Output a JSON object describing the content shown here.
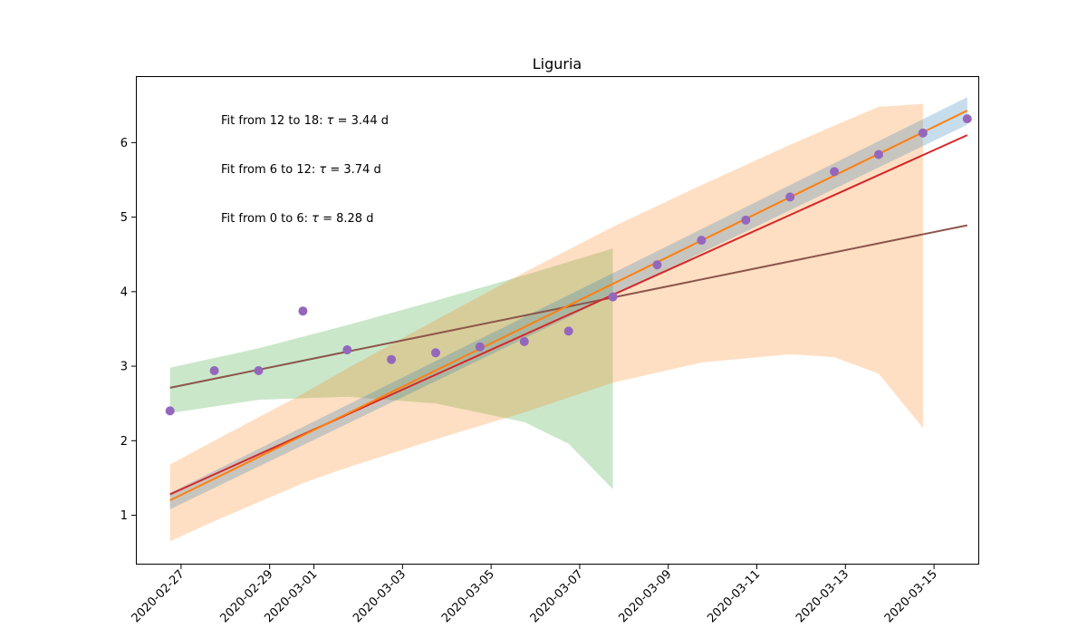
{
  "chart_data": {
    "type": "scatter",
    "title": "Liguria",
    "xlabel": "",
    "ylabel": "",
    "x_range": [
      "2020-02-26",
      "2020-03-16"
    ],
    "ylim": [
      0.35,
      6.88
    ],
    "x_ticks": [
      "2020-02-27",
      "2020-02-29",
      "2020-03-01",
      "2020-03-03",
      "2020-03-05",
      "2020-03-07",
      "2020-03-09",
      "2020-03-11",
      "2020-03-13",
      "2020-03-15"
    ],
    "y_ticks": [
      1,
      2,
      3,
      4,
      5,
      6
    ],
    "grid": false,
    "annotations": [
      {
        "prefix": "Fit from 12 to 18: ",
        "tau": "τ",
        "suffix": " = 3.44 d"
      },
      {
        "prefix": "Fit from 6 to 12: ",
        "tau": "τ",
        "suffix": " = 3.74 d"
      },
      {
        "prefix": "Fit from 0 to 6: ",
        "tau": "τ",
        "suffix": " = 8.28 d"
      }
    ],
    "points": {
      "color": "#9467bd",
      "x": [
        "2020-02-26T18:00",
        "2020-02-27T18:00",
        "2020-02-28T18:00",
        "2020-02-29T18:00",
        "2020-03-01T18:00",
        "2020-03-02T18:00",
        "2020-03-03T18:00",
        "2020-03-04T18:00",
        "2020-03-05T18:00",
        "2020-03-06T18:00",
        "2020-03-07T18:00",
        "2020-03-08T18:00",
        "2020-03-09T18:00",
        "2020-03-10T18:00",
        "2020-03-11T18:00",
        "2020-03-12T18:00",
        "2020-03-13T18:00",
        "2020-03-14T18:00",
        "2020-03-15T18:00"
      ],
      "y": [
        2.4,
        2.94,
        2.94,
        3.74,
        3.22,
        3.09,
        3.18,
        3.26,
        3.33,
        3.47,
        3.93,
        4.36,
        4.69,
        4.96,
        5.27,
        5.61,
        5.84,
        6.13,
        6.32
      ]
    },
    "bands": [
      {
        "color": "#2ca02c",
        "opacity": 0.25,
        "x": [
          "2020-02-26T18:00",
          "2020-02-28T18:00",
          "2020-03-01T18:00",
          "2020-03-03T18:00",
          "2020-03-05T18:00",
          "2020-03-06T18:00",
          "2020-03-07T18:00"
        ],
        "upper": [
          2.98,
          3.24,
          3.55,
          3.88,
          4.22,
          4.4,
          4.58
        ],
        "lower": [
          2.37,
          2.55,
          2.59,
          2.5,
          2.25,
          1.96,
          1.35
        ]
      },
      {
        "color": "#ff7f0e",
        "opacity": 0.25,
        "x": [
          "2020-02-26T18:00",
          "2020-02-27T18:00",
          "2020-02-29T18:00",
          "2020-03-01T18:00",
          "2020-03-03T18:00",
          "2020-03-05T18:00",
          "2020-03-07T18:00",
          "2020-03-09T18:00",
          "2020-03-11T18:00",
          "2020-03-12T18:00",
          "2020-03-13T18:00",
          "2020-03-14T18:00"
        ],
        "upper": [
          1.68,
          2.0,
          2.63,
          2.97,
          3.62,
          4.26,
          4.87,
          5.43,
          5.97,
          6.23,
          6.48,
          6.52
        ],
        "lower": [
          0.65,
          0.92,
          1.43,
          1.64,
          2.02,
          2.38,
          2.78,
          3.05,
          3.16,
          3.12,
          2.9,
          2.17
        ]
      },
      {
        "color": "#1f77b4",
        "opacity": 0.25,
        "x": [
          "2020-02-26T18:00",
          "2020-03-15T18:00"
        ],
        "upper": [
          1.3,
          6.61
        ],
        "lower": [
          1.08,
          6.24
        ]
      }
    ],
    "lines": [
      {
        "color": "#8c564b",
        "x": [
          "2020-02-26T18:00",
          "2020-03-15T18:00"
        ],
        "y": [
          2.71,
          4.89
        ]
      },
      {
        "color": "#d62728",
        "x": [
          "2020-02-26T18:00",
          "2020-03-15T18:00"
        ],
        "y": [
          1.28,
          6.1
        ]
      },
      {
        "color": "#ff7f0e",
        "x": [
          "2020-02-26T18:00",
          "2020-03-15T18:00"
        ],
        "y": [
          1.2,
          6.43
        ]
      }
    ]
  }
}
